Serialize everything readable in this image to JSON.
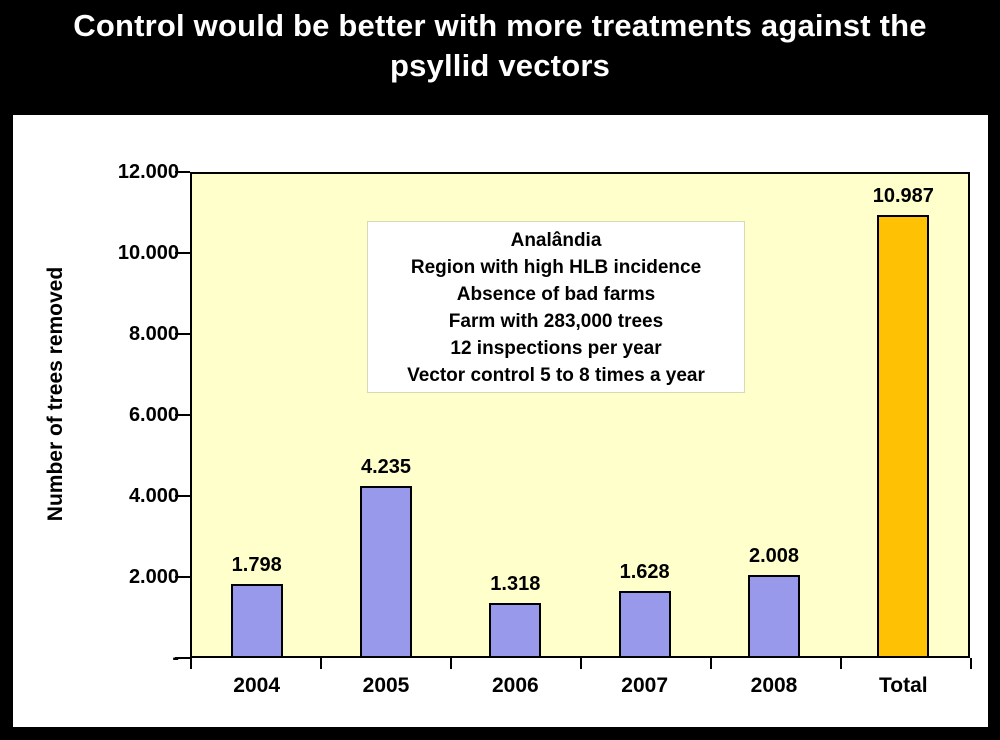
{
  "page": {
    "title": "Control would be better with more treatments against the psyllid vectors"
  },
  "chart_data": {
    "type": "bar",
    "categories": [
      "2004",
      "2005",
      "2006",
      "2007",
      "2008",
      "Total"
    ],
    "values": [
      1798,
      4235,
      1318,
      1628,
      2008,
      10987
    ],
    "value_labels": [
      "1.798",
      "4.235",
      "1.318",
      "1.628",
      "2.008",
      "10.987"
    ],
    "xlabel": "",
    "ylabel": "Number of trees removed",
    "ylim": [
      0,
      12000
    ],
    "ytick_interval": 2000,
    "ytick_labels": [
      "12.000",
      "10.000",
      "8.000",
      "6.000",
      "4.000",
      "2.000",
      "-"
    ],
    "grid": false,
    "legend": "none",
    "annotation": {
      "lines": [
        "Analândia",
        "Region with high HLB incidence",
        "Absence of bad farms",
        "Farm with 283,000 trees",
        "12 inspections per year",
        "Vector control 5 to 8 times a year"
      ]
    }
  },
  "colors": {
    "page_bg": "#000000",
    "panel_bg": "#FFFFFF",
    "plot_bg": "#FFFFCC",
    "bar_fill": "#9999EC",
    "bar_border": "#000000",
    "total_fill": "#FFC103",
    "title_text": "#FFFFFF",
    "axis_text": "#000000",
    "annotation_bg": "#FFFFFF"
  }
}
